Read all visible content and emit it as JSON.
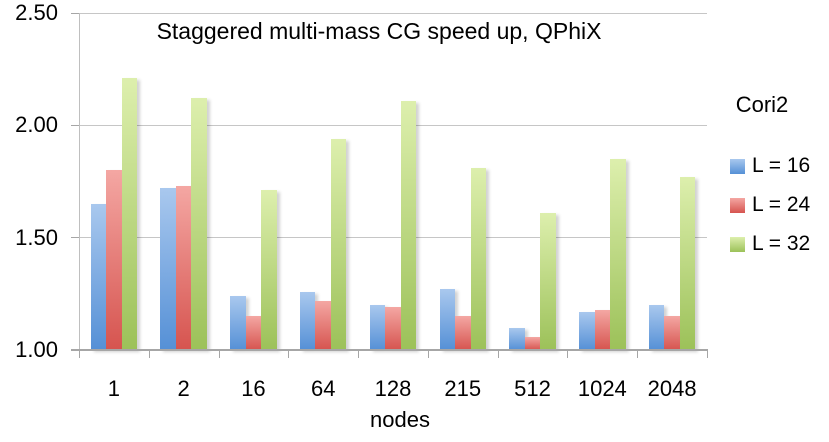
{
  "chart_data": {
    "type": "bar",
    "title": "Staggered multi-mass CG speed up, QPhiX",
    "xlabel": "nodes",
    "ylabel": "",
    "legend_title": "Cori2",
    "legend_position": "right",
    "grid": true,
    "ylim": [
      1.0,
      2.5
    ],
    "ytick_step": 0.5,
    "ytick_labels": [
      "1.00",
      "1.50",
      "2.00",
      "2.50"
    ],
    "categories": [
      "1",
      "2",
      "16",
      "64",
      "128",
      "215",
      "512",
      "1024",
      "2048"
    ],
    "series": [
      {
        "name": "L = 16",
        "color_top": "#A9C8EE",
        "color_bottom": "#5590D6",
        "values": [
          1.65,
          1.72,
          1.24,
          1.26,
          1.2,
          1.27,
          1.1,
          1.17,
          1.2
        ]
      },
      {
        "name": "L = 24",
        "color_top": "#F4A7A3",
        "color_bottom": "#D6544F",
        "values": [
          1.8,
          1.73,
          1.15,
          1.22,
          1.19,
          1.15,
          1.06,
          1.18,
          1.15
        ]
      },
      {
        "name": "L = 32",
        "color_top": "#DDEFAD",
        "color_bottom": "#9CC159",
        "values": [
          2.21,
          2.12,
          1.71,
          1.94,
          2.11,
          1.81,
          1.61,
          1.85,
          1.77
        ]
      }
    ],
    "colors": {
      "gridline": "#C6C6C6",
      "axis_line": "#A6A6A6",
      "y_axis_line": "#BFBFBF",
      "text": "#000000",
      "background": "#FFFFFF"
    }
  }
}
